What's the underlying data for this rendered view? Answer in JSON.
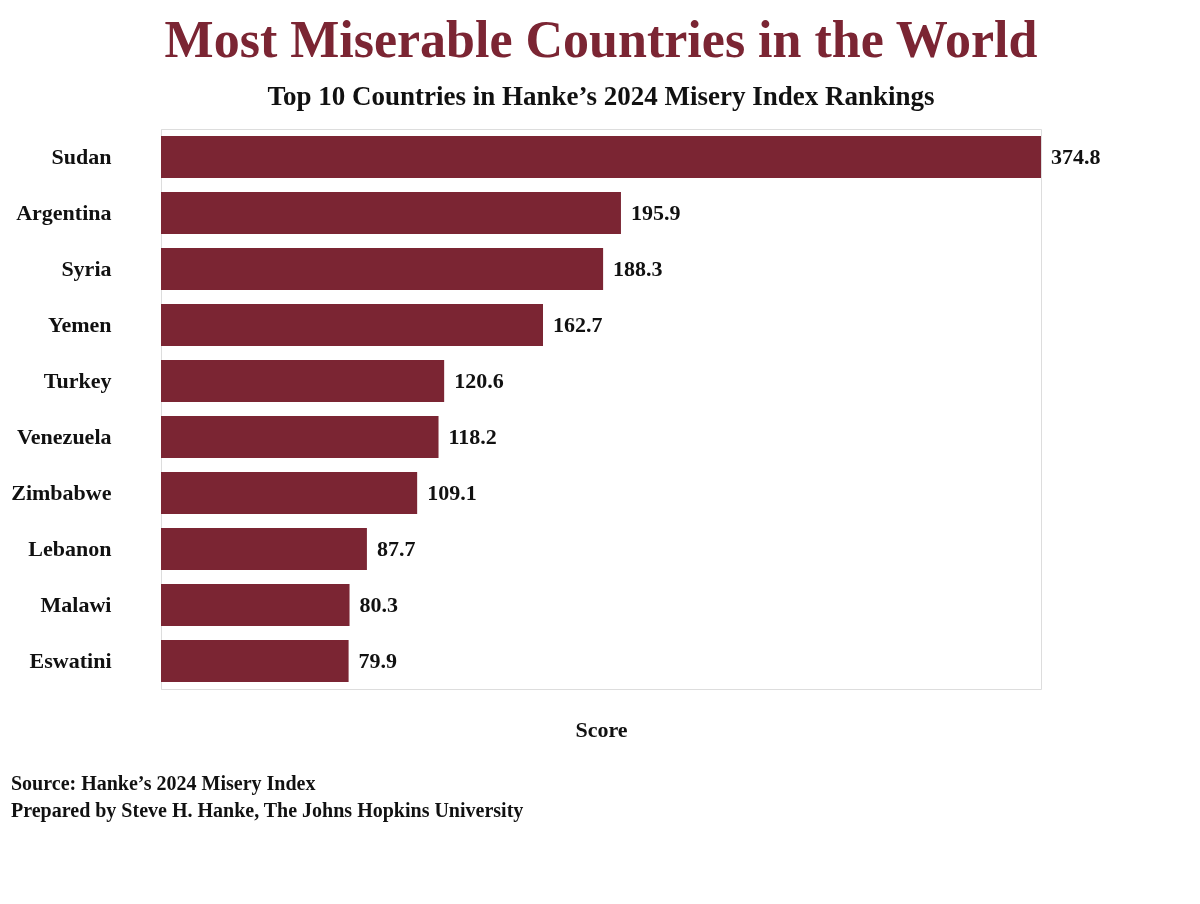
{
  "chart_data": {
    "type": "bar",
    "orientation": "horizontal",
    "title": "Most Miserable Countries in the World",
    "subtitle": "Top 10 Countries in Hanke’s 2024 Misery Index Rankings",
    "xlabel": "Score",
    "categories": [
      "Sudan",
      "Argentina",
      "Syria",
      "Yemen",
      "Turkey",
      "Venezuela",
      "Zimbabwe",
      "Lebanon",
      "Malawi",
      "Eswatini"
    ],
    "values": [
      374.8,
      195.9,
      188.3,
      162.7,
      120.6,
      118.2,
      109.1,
      87.7,
      80.3,
      79.9
    ],
    "color": "#7b2533",
    "data_labels": true,
    "tick_labels": "y",
    "grid": false,
    "annotations": [
      "Source: Hanke’s 2024 Misery Index",
      "Prepared by Steve H. Hanke, The Johns Hopkins University"
    ]
  }
}
